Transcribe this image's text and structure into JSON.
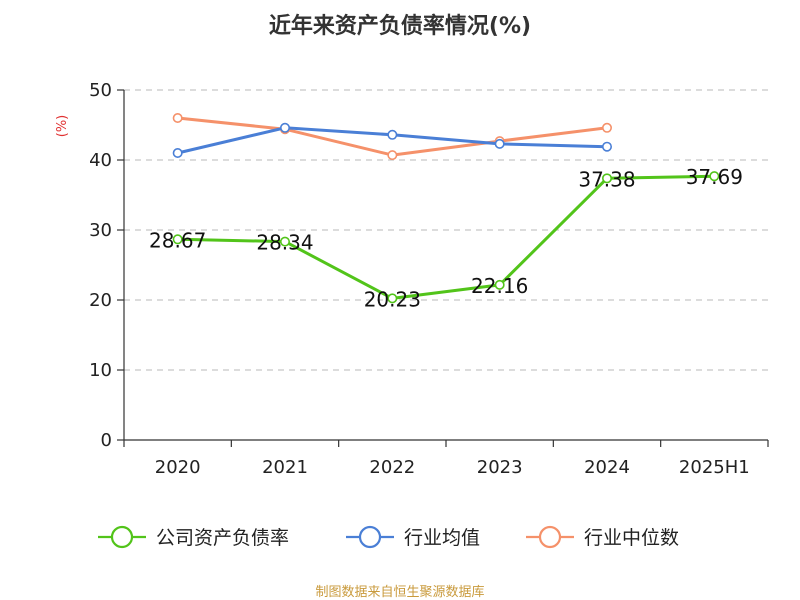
{
  "chart_data": {
    "type": "line",
    "title": "近年来资产负债率情况(%)",
    "ylabel": "(%)",
    "xlabel": "",
    "categories": [
      "2020",
      "2021",
      "2022",
      "2023",
      "2024",
      "2025H1"
    ],
    "ylim": [
      0,
      50
    ],
    "yticks": [
      0,
      10,
      20,
      30,
      40,
      50
    ],
    "grid": true,
    "legend_position": "bottom",
    "series": [
      {
        "name": "公司资产负债率",
        "color": "#52c41a",
        "values": [
          28.67,
          28.34,
          20.23,
          22.16,
          37.38,
          37.69
        ],
        "labels": [
          "28.67",
          "28.34",
          "20.23",
          "22.16",
          "37.38",
          "37.69"
        ]
      },
      {
        "name": "行业均值",
        "color": "#4a7fd6",
        "values": [
          41.0,
          44.6,
          43.6,
          42.3,
          41.9,
          null
        ]
      },
      {
        "name": "行业中位数",
        "color": "#f5916a",
        "values": [
          46.0,
          44.4,
          40.7,
          42.7,
          44.6,
          null
        ]
      }
    ]
  },
  "footer": {
    "source": "制图数据来自恒生聚源数据库"
  }
}
